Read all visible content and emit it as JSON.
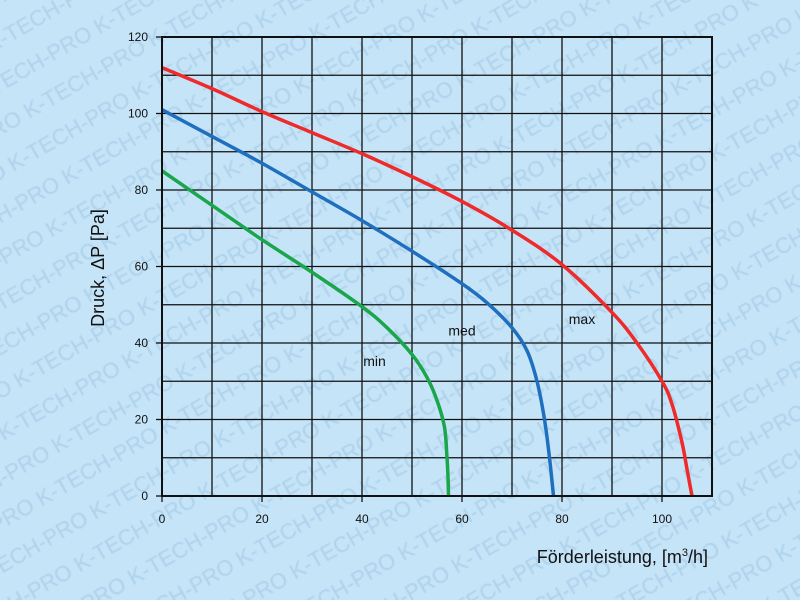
{
  "watermark": "K-TECH-PRO",
  "chart_data": {
    "type": "line",
    "title": "",
    "xlabel": "Förderleistung, [m³/h]",
    "xlabel_main": "Förderleistung, [m",
    "xlabel_sup": "3",
    "xlabel_end": "/h]",
    "ylabel": "Druck, ΔP [Pa]",
    "xlim": [
      0,
      110
    ],
    "ylim": [
      0,
      120
    ],
    "x_ticks": [
      0,
      20,
      40,
      60,
      80,
      100
    ],
    "y_ticks": [
      0,
      20,
      40,
      60,
      80,
      100,
      120
    ],
    "grid": true,
    "grid_step_x": 10,
    "grid_step_y": 10,
    "series": [
      {
        "name": "max",
        "color": "#ee2a2a",
        "label_at": [
          84,
          45
        ],
        "x": [
          0,
          10,
          20,
          30,
          40,
          50,
          60,
          70,
          80,
          90,
          95,
          100,
          102,
          104,
          105,
          106
        ],
        "y": [
          112,
          106.5,
          100.5,
          95,
          89.5,
          83.5,
          77,
          69.5,
          60.5,
          48,
          40,
          30,
          24,
          14,
          7,
          0
        ]
      },
      {
        "name": "med",
        "color": "#1f6fbf",
        "label_at": [
          60,
          42
        ],
        "x": [
          0,
          10,
          20,
          30,
          40,
          50,
          60,
          65,
          70,
          73,
          75,
          76.5,
          77.5,
          78.3
        ],
        "y": [
          101,
          94,
          87,
          79.5,
          72,
          64,
          55.5,
          50.5,
          44,
          38,
          30,
          20,
          10,
          0
        ]
      },
      {
        "name": "min",
        "color": "#1aa64a",
        "label_at": [
          42.5,
          34
        ],
        "x": [
          0,
          10,
          20,
          30,
          40,
          45,
          50,
          53,
          55,
          56.5,
          57,
          57.2,
          57.3
        ],
        "y": [
          85,
          76,
          67,
          58.5,
          49.5,
          44,
          37,
          31,
          25,
          18,
          10,
          5,
          0
        ]
      }
    ]
  }
}
